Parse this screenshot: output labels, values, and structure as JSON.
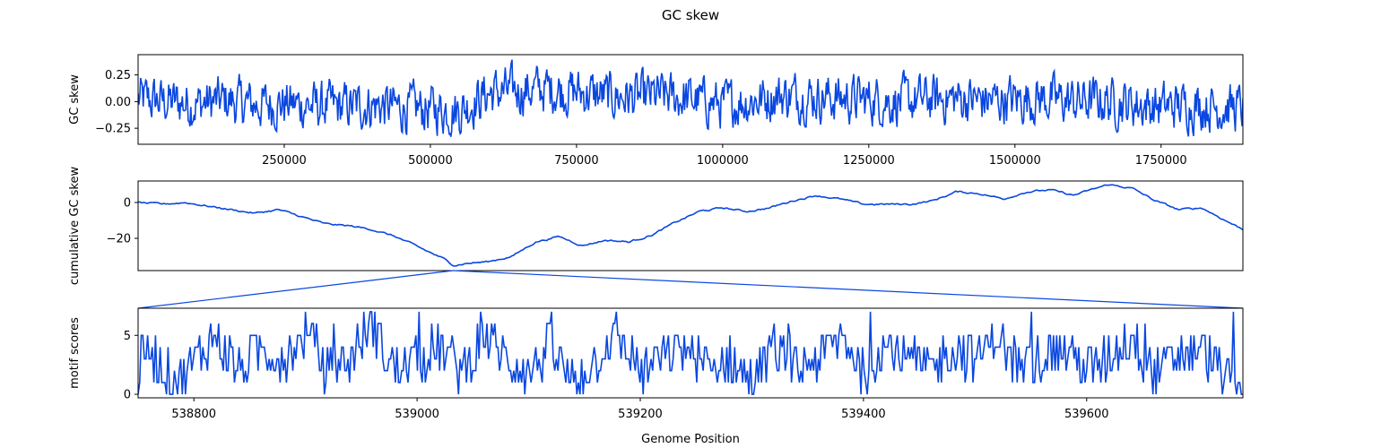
{
  "figure": {
    "title": "GC skew",
    "xlabel": "Genome Position",
    "line_color": "#0a47e0"
  },
  "chart_data": [
    {
      "type": "line",
      "ylabel": "GC skew",
      "xlim": [
        0,
        1890000
      ],
      "ylim": [
        -0.4,
        0.44
      ],
      "xticks": [
        250000,
        500000,
        750000,
        1000000,
        1250000,
        1500000,
        1750000
      ],
      "xtick_labels": [
        "250000",
        "500000",
        "750000",
        "1000000",
        "1250000",
        "1500000",
        "1750000"
      ],
      "yticks": [
        -0.25,
        0.0,
        0.25
      ],
      "ytick_labels": [
        "−0.25",
        "0.00",
        "0.25"
      ],
      "noise_amplitude": 0.12,
      "x": [
        0,
        50000,
        100000,
        150000,
        200000,
        250000,
        300000,
        350000,
        400000,
        450000,
        500000,
        550000,
        600000,
        650000,
        700000,
        750000,
        800000,
        850000,
        900000,
        950000,
        1000000,
        1050000,
        1100000,
        1150000,
        1200000,
        1250000,
        1300000,
        1350000,
        1400000,
        1450000,
        1500000,
        1550000,
        1600000,
        1650000,
        1700000,
        1750000,
        1800000,
        1850000,
        1890000
      ],
      "y": [
        0.02,
        0.0,
        -0.02,
        0.01,
        -0.03,
        -0.02,
        -0.04,
        -0.05,
        -0.03,
        -0.06,
        -0.07,
        -0.08,
        0.08,
        0.1,
        0.12,
        0.09,
        0.05,
        0.04,
        0.05,
        0.02,
        -0.03,
        0.01,
        0.06,
        0.05,
        0.03,
        0.02,
        0.0,
        0.02,
        0.03,
        0.01,
        0.02,
        0.03,
        0.0,
        0.01,
        -0.02,
        -0.05,
        -0.03,
        -0.05,
        -0.06
      ]
    },
    {
      "type": "line",
      "ylabel": "cumulative GC skew",
      "xlim": [
        0,
        1890000
      ],
      "ylim": [
        -38,
        12
      ],
      "yticks": [
        -20,
        0
      ],
      "ytick_labels": [
        "−20",
        "0"
      ],
      "noise_amplitude": 0.8,
      "x": [
        0,
        40000,
        80000,
        120000,
        160000,
        200000,
        240000,
        280000,
        320000,
        360000,
        400000,
        440000,
        480000,
        520000,
        540000,
        560000,
        600000,
        640000,
        680000,
        720000,
        760000,
        800000,
        840000,
        880000,
        920000,
        960000,
        1000000,
        1040000,
        1080000,
        1120000,
        1160000,
        1200000,
        1240000,
        1280000,
        1320000,
        1360000,
        1400000,
        1440000,
        1480000,
        1520000,
        1560000,
        1600000,
        1640000,
        1660000,
        1700000,
        1740000,
        1780000,
        1820000,
        1860000,
        1890000
      ],
      "y": [
        0,
        -1,
        0,
        -2,
        -4,
        -6,
        -4,
        -8,
        -12,
        -13,
        -15,
        -19,
        -25,
        -31,
        -35,
        -34,
        -33,
        -30,
        -22,
        -19,
        -24,
        -21,
        -22,
        -18,
        -11,
        -5,
        -3,
        -5,
        -3,
        1,
        4,
        2,
        -1,
        -1,
        -1,
        1,
        6,
        5,
        2,
        6,
        7,
        4,
        8,
        10,
        8,
        1,
        -4,
        -3,
        -10,
        -15
      ]
    },
    {
      "type": "line",
      "ylabel": "motif scores",
      "xlim": [
        538750,
        539740
      ],
      "ylim": [
        -0.3,
        7.3
      ],
      "xticks": [
        538800,
        539000,
        539200,
        539400,
        539600
      ],
      "xtick_labels": [
        "538800",
        "539000",
        "539200",
        "539400",
        "539600"
      ],
      "yticks": [
        0,
        5
      ],
      "ytick_labels": [
        "0",
        "5"
      ],
      "x": [
        538750,
        538760,
        538780,
        538800,
        538820,
        538840,
        538860,
        538880,
        538900,
        538920,
        538940,
        538960,
        538980,
        539000,
        539020,
        539040,
        539060,
        539080,
        539100,
        539120,
        539140,
        539160,
        539180,
        539200,
        539220,
        539240,
        539260,
        539280,
        539300,
        539320,
        539340,
        539360,
        539380,
        539400,
        539420,
        539440,
        539460,
        539480,
        539500,
        539520,
        539540,
        539560,
        539580,
        539600,
        539620,
        539640,
        539660,
        539680,
        539700,
        539720,
        539740
      ],
      "y": [
        2,
        4,
        1,
        3,
        5,
        2,
        4,
        3,
        5,
        2,
        3,
        6,
        2,
        3,
        4,
        2,
        5,
        3,
        2,
        4,
        1,
        3,
        5,
        2,
        3,
        4,
        2,
        3,
        1,
        4,
        2,
        3,
        5,
        2,
        4,
        3,
        2,
        4,
        3,
        5,
        2,
        3,
        4,
        2,
        3,
        5,
        2,
        3,
        4,
        2,
        0
      ]
    }
  ]
}
